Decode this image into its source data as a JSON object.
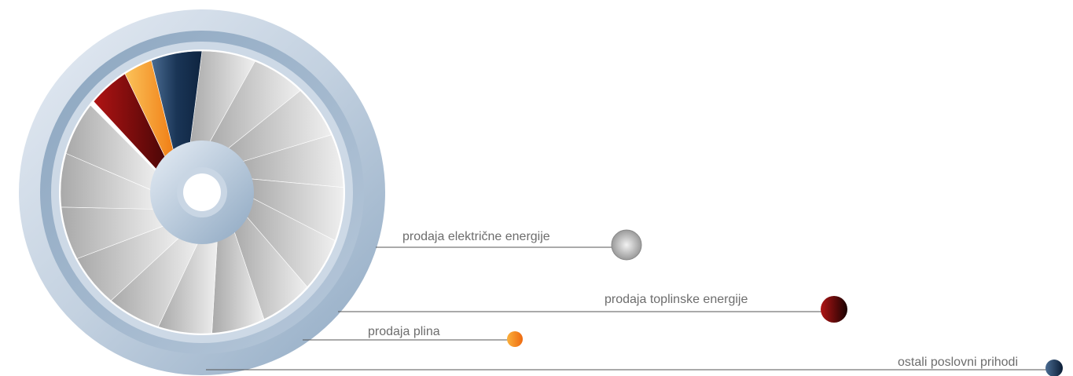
{
  "items": [
    {
      "label": "prodaja električne energije"
    },
    {
      "label": "prodaja toplinske energije"
    },
    {
      "label": "prodaja plina"
    },
    {
      "label": "ostali poslovni prihodi"
    }
  ]
}
